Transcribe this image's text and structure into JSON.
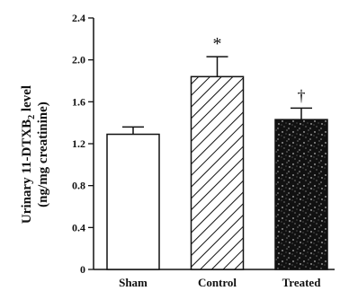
{
  "chart_data": {
    "type": "bar",
    "categories": [
      "Sham",
      "Control",
      "Treated"
    ],
    "values": [
      1.29,
      1.84,
      1.43
    ],
    "errors": [
      0.07,
      0.19,
      0.11
    ],
    "annotations": [
      "",
      "*",
      "†"
    ],
    "patterns": [
      "white",
      "diagonal-hatch",
      "black-speckled"
    ],
    "ylabel_line1_prefix": "Urinary 11-DTXB",
    "ylabel_line1_subscript": "2",
    "ylabel_line1_suffix": " level",
    "ylabel_line2": "(ng/mg creatinine)",
    "xlabel": "",
    "ylim": [
      0,
      2.4
    ],
    "yticks": [
      "0",
      "0.4",
      "0.8",
      "1.2",
      "1.6",
      "2.0",
      "2.4"
    ],
    "grid": false
  }
}
